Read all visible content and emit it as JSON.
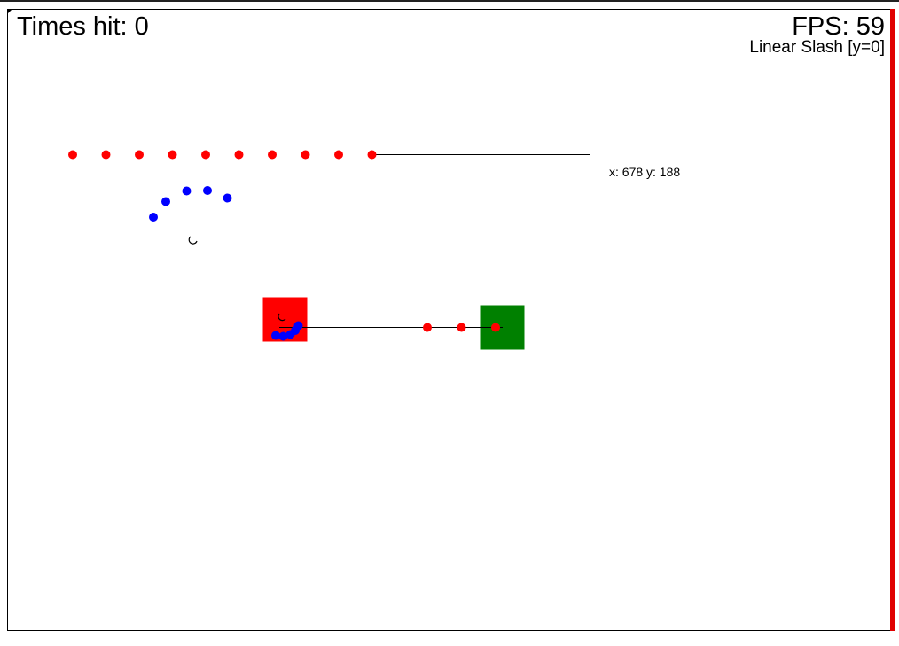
{
  "hud": {
    "times_hit": "Times hit: 0",
    "fps": "FPS: 59",
    "mode": "Linear Slash [y=0]"
  },
  "cursor_readout": "x: 678 y: 188",
  "colors": {
    "red_dot": "#ff0000",
    "blue_dot": "#0000ff",
    "target_box": "#ff0000",
    "player_box": "#008000",
    "wall": "#e00000",
    "line": "#000000"
  },
  "icons": {
    "cursor": "spinner-cursor-icon"
  }
}
